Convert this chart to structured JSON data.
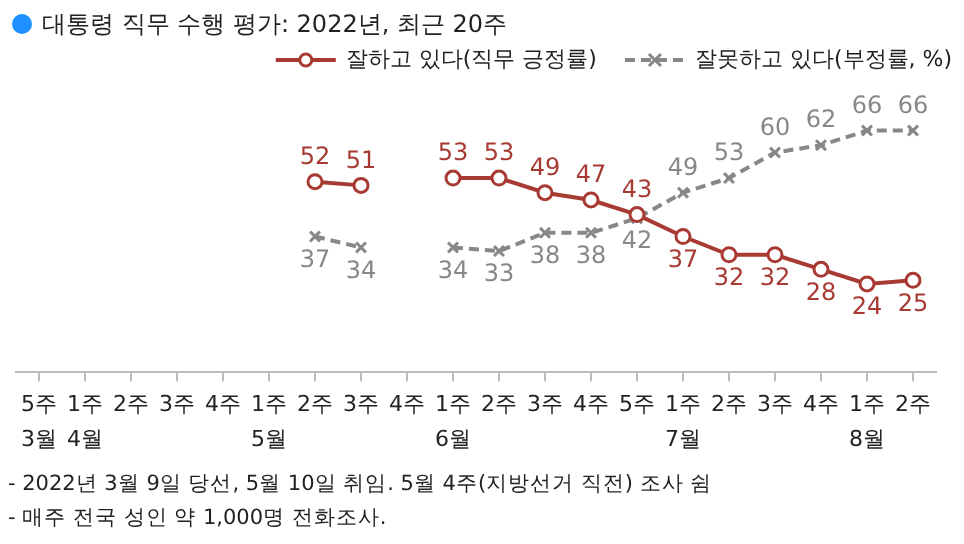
{
  "chart_data": {
    "type": "line",
    "title": "대통령 직무 수행 평가: 2022년, 최근 20주",
    "categories": [
      "5주\n3월",
      "1주\n4월",
      "2주",
      "3주",
      "4주",
      "1주\n5월",
      "2주",
      "3주",
      "4주",
      "1주\n6월",
      "2주",
      "3주",
      "4주",
      "5주",
      "1주\n7월",
      "2주",
      "3주",
      "4주",
      "1주\n8월",
      "2주"
    ],
    "series": [
      {
        "name": "잘하고 있다(직무 긍정률)",
        "color": "#a83a34",
        "marker": "circle",
        "line_style": "solid",
        "values": [
          null,
          null,
          null,
          null,
          null,
          null,
          52,
          51,
          null,
          53,
          53,
          49,
          47,
          43,
          37,
          32,
          32,
          28,
          24,
          25
        ]
      },
      {
        "name": "잘못하고 있다(부정률, %)",
        "color": "#888888",
        "marker": "cross",
        "line_style": "dashed",
        "values": [
          null,
          null,
          null,
          null,
          null,
          null,
          37,
          34,
          null,
          34,
          33,
          38,
          38,
          42,
          49,
          53,
          60,
          62,
          66,
          66
        ]
      }
    ],
    "tick_labels": "x",
    "grid": false,
    "legend": "top right",
    "data_labels": true,
    "annotations": [
      "- 2022년 3월 9일 당선, 5월 10일 취임. 5월 4주(지방선거 직전) 조사 쉼",
      "- 매주 전국 성인 약 1,000명 전화조사."
    ]
  }
}
